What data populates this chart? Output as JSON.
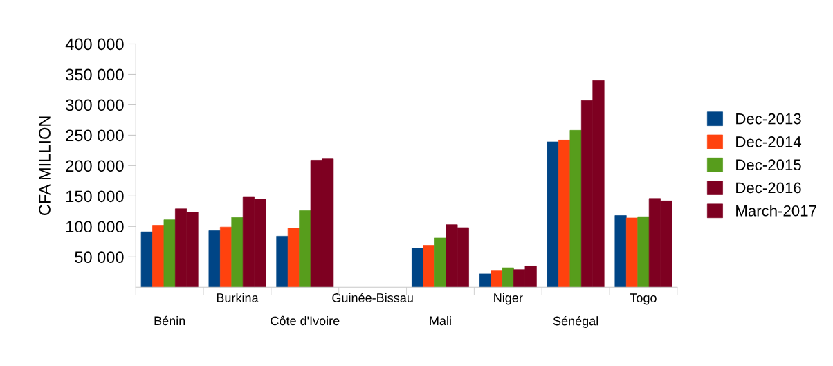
{
  "chart_data": {
    "type": "bar",
    "ylabel": "CFA MILLION",
    "categories": [
      "Bénin",
      "Burkina",
      "Côte d'Ivoire",
      "Guinée-Bissau",
      "Mali",
      "Niger",
      "Sénégal",
      "Togo"
    ],
    "series": [
      {
        "name": "Dec-2013",
        "color": "#004586",
        "values": [
          91000,
          93000,
          84000,
          null,
          64000,
          22000,
          239000,
          118000
        ]
      },
      {
        "name": "Dec-2014",
        "color": "#ff420e",
        "values": [
          102000,
          99000,
          97000,
          null,
          69000,
          28000,
          242000,
          114000
        ]
      },
      {
        "name": "Dec-2015",
        "color": "#579d1c",
        "values": [
          111000,
          115000,
          126000,
          null,
          81000,
          32000,
          258000,
          116000
        ]
      },
      {
        "name": "Dec-2016",
        "color": "#7e0021",
        "values": [
          129000,
          148000,
          209000,
          null,
          103000,
          29000,
          307000,
          146000
        ]
      },
      {
        "name": "March-2017",
        "color": "#7e0021",
        "values": [
          123000,
          145000,
          211000,
          null,
          98000,
          35000,
          340000,
          142000
        ]
      }
    ],
    "ylim": [
      0,
      400000
    ],
    "yticks": [
      {
        "value": 50000,
        "label": "50 000"
      },
      {
        "value": 100000,
        "label": "100 000"
      },
      {
        "value": 150000,
        "label": "150 000"
      },
      {
        "value": 200000,
        "label": "200 000"
      },
      {
        "value": 250000,
        "label": "250 000"
      },
      {
        "value": 300000,
        "label": "300 000"
      },
      {
        "value": 350000,
        "label": "350 000"
      },
      {
        "value": 400000,
        "label": "400 000"
      }
    ],
    "grid": false,
    "legend": "right"
  }
}
